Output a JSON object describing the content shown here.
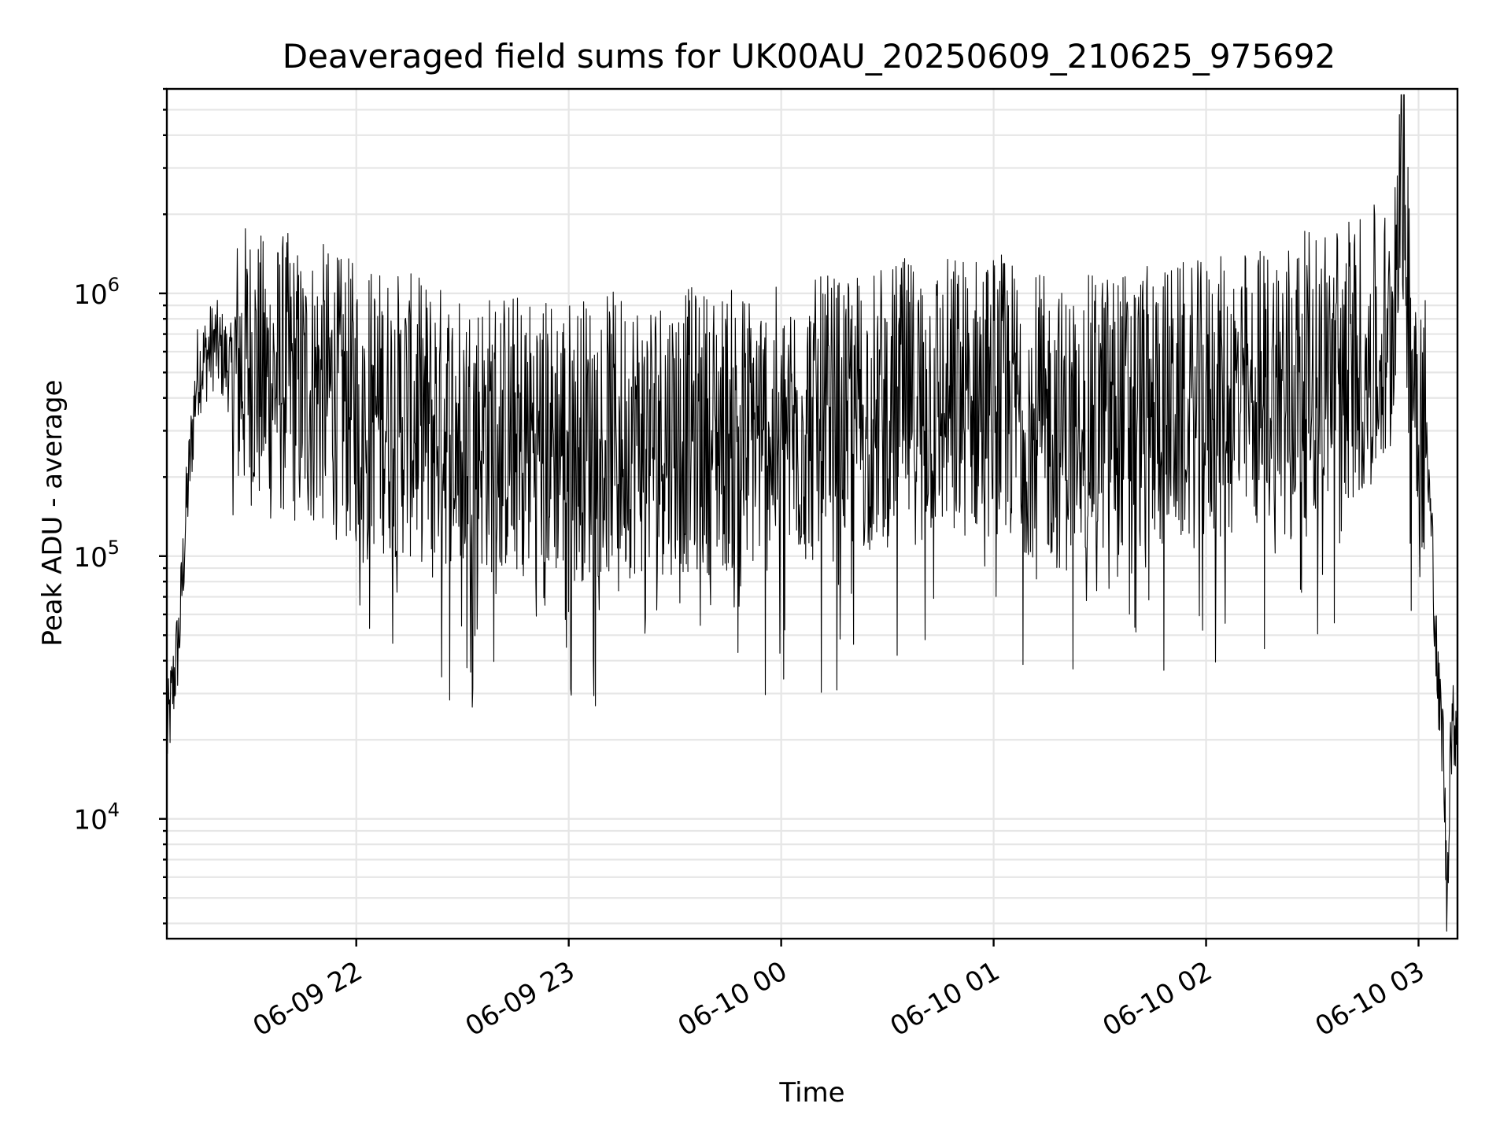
{
  "chart_data": {
    "type": "line",
    "title": "Deaveraged field sums for UK00AU_20250609_210625_975692",
    "xlabel": "Time",
    "ylabel": "Peak ADU - average",
    "yscale": "log",
    "ylim": [
      3500,
      6000000
    ],
    "xlim": [
      "2025-06-09 21:06:30",
      "2025-06-10 03:11:00"
    ],
    "grid": true,
    "legend": "none",
    "line_color": "#000000",
    "x_ticks": [
      {
        "label": "06-09 22",
        "time": "2025-06-09 22:00"
      },
      {
        "label": "06-09 23",
        "time": "2025-06-09 23:00"
      },
      {
        "label": "06-10 00",
        "time": "2025-06-10 00:00"
      },
      {
        "label": "06-10 01",
        "time": "2025-06-10 01:00"
      },
      {
        "label": "06-10 02",
        "time": "2025-06-10 02:00"
      },
      {
        "label": "06-10 03",
        "time": "2025-06-10 03:00"
      }
    ],
    "y_ticks": [
      {
        "base": "10",
        "exp": "4",
        "value": 10000
      },
      {
        "base": "10",
        "exp": "5",
        "value": 100000
      },
      {
        "base": "10",
        "exp": "6",
        "value": 1000000
      }
    ],
    "series": [
      {
        "x": [
          "2025-06-09 21:06:30",
          "2025-06-09 21:08:00",
          "2025-06-09 21:10:00",
          "2025-06-09 21:12:00",
          "2025-06-09 21:15:00",
          "2025-06-09 21:20:00",
          "2025-06-09 21:25:00",
          "2025-06-09 21:30:00",
          "2025-06-09 21:35:00",
          "2025-06-09 21:40:00",
          "2025-06-09 21:45:00",
          "2025-06-09 21:50:00",
          "2025-06-09 21:55:00",
          "2025-06-09 22:00:00",
          "2025-06-09 22:30:00",
          "2025-06-09 23:00:00",
          "2025-06-09 23:30:00",
          "2025-06-10 00:00:00",
          "2025-06-10 00:30:00",
          "2025-06-10 01:00:00",
          "2025-06-10 01:20:00",
          "2025-06-10 01:30:00",
          "2025-06-10 02:00:00",
          "2025-06-10 02:30:00",
          "2025-06-10 02:45:00",
          "2025-06-10 02:52:00",
          "2025-06-10 02:55:00",
          "2025-06-10 02:58:00",
          "2025-06-10 03:02:00",
          "2025-06-10 03:04:00",
          "2025-06-10 03:05:30",
          "2025-06-10 03:07:00",
          "2025-06-10 03:08:00",
          "2025-06-10 03:09:00",
          "2025-06-10 03:11:00"
        ],
        "y": [
          20000,
          30000,
          50000,
          150000,
          500000,
          650000,
          500000,
          550000,
          450000,
          500000,
          420000,
          450000,
          400000,
          380000,
          300000,
          280000,
          300000,
          300000,
          380000,
          420000,
          300000,
          350000,
          380000,
          500000,
          600000,
          650000,
          4300000,
          600000,
          300000,
          100000,
          30000,
          20000,
          4600,
          20000,
          25000
        ]
      }
    ]
  }
}
